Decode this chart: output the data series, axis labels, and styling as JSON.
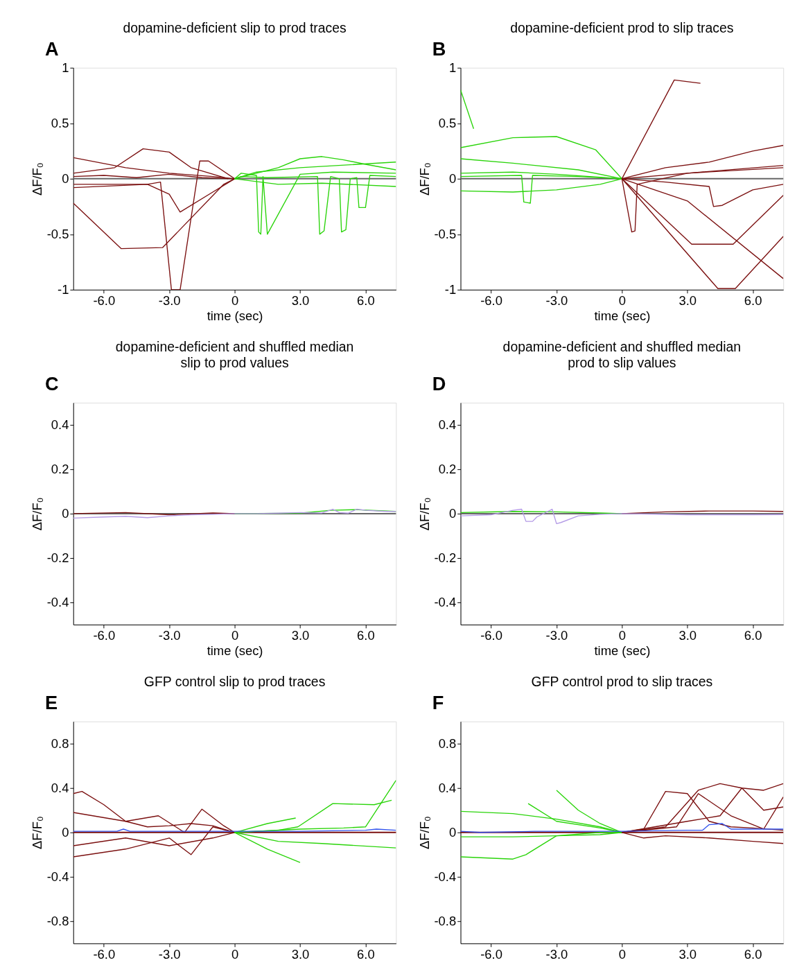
{
  "chart_data": [
    {
      "type": "line",
      "title": "dopamine-deficient slip to prod traces",
      "xlabel": "time (sec)",
      "ylabel": "ΔF/F₀",
      "annotations": [
        "A"
      ],
      "xlim": [
        -7.4,
        7.4
      ],
      "xticks": [
        {
          "value": -6,
          "label": "-6.0"
        },
        {
          "value": -3,
          "label": "-3.0"
        },
        0,
        {
          "value": 3,
          "label": "3.0"
        },
        {
          "value": 6,
          "label": "6.0"
        }
      ],
      "ylim": [
        -1,
        1
      ],
      "yticks": [
        -1,
        -0.5,
        0,
        0.5,
        1
      ],
      "grid": false,
      "legend": false,
      "ref_lines": [
        {
          "axis": "y",
          "value": 0,
          "color": "#666666"
        }
      ],
      "series": [
        {
          "color": "#7b1010",
          "x": [
            -7.4,
            -6,
            -4.5,
            -3,
            -1.5,
            0
          ],
          "values": [
            0.02,
            0.03,
            0.01,
            0.04,
            0.01,
            0
          ]
        },
        {
          "color": "#7b1010",
          "x": [
            -7.4,
            -5.5,
            -4.2,
            -3,
            -2,
            -0.3
          ],
          "values": [
            0.05,
            0.1,
            0.27,
            0.24,
            0.1,
            0
          ]
        },
        {
          "color": "#7b1010",
          "x": [
            -7.4,
            -5.2,
            -3.3,
            -0.5,
            0
          ],
          "values": [
            -0.22,
            -0.63,
            -0.62,
            -0.05,
            0
          ]
        },
        {
          "color": "#7b1010",
          "x": [
            -7.4,
            -4,
            -3.4,
            -2.9,
            -2.5,
            -1.6,
            -1.2,
            0
          ],
          "values": [
            -0.05,
            -0.05,
            -0.03,
            -1,
            -1,
            0.16,
            0.16,
            0
          ]
        },
        {
          "color": "#7b1010",
          "x": [
            -7.4,
            -4,
            -3,
            -2.5,
            -1,
            0
          ],
          "values": [
            -0.08,
            -0.05,
            -0.14,
            -0.3,
            -0.12,
            0
          ]
        },
        {
          "color": "#7b1010",
          "x": [
            -7.4,
            -5,
            -3,
            -1,
            0
          ],
          "values": [
            0.19,
            0.1,
            0.05,
            0.02,
            0
          ]
        },
        {
          "color": "#2ad40a",
          "x": [
            0,
            0.3,
            1.0,
            1.1,
            1.2,
            1.3,
            1.5,
            3,
            4.5,
            7.4
          ],
          "values": [
            0,
            0.05,
            0.03,
            -0.48,
            -0.5,
            0.02,
            -0.5,
            0.04,
            0.06,
            0.05
          ]
        },
        {
          "color": "#2ad40a",
          "x": [
            0,
            1,
            2,
            3,
            4,
            5,
            6,
            7.4
          ],
          "values": [
            0,
            0.05,
            0.1,
            0.18,
            0.2,
            0.17,
            0.13,
            0.08
          ]
        },
        {
          "color": "#2ad40a",
          "x": [
            0,
            0.3,
            1.5,
            3.8,
            3.9,
            4.1,
            4.4,
            4.8,
            4.9,
            5.1,
            5.3,
            5.6,
            5.7,
            6.0,
            6.2,
            7.4
          ],
          "values": [
            0,
            0.02,
            0.01,
            0.02,
            -0.5,
            -0.47,
            0.02,
            0.0,
            -0.48,
            -0.46,
            0.0,
            0.01,
            -0.26,
            -0.26,
            0.03,
            0.02
          ]
        },
        {
          "color": "#2ad40a",
          "x": [
            0,
            2,
            4,
            7.4
          ],
          "values": [
            0,
            -0.05,
            -0.04,
            -0.07
          ]
        },
        {
          "color": "#2ad40a",
          "x": [
            0,
            1,
            3,
            7.4
          ],
          "values": [
            0,
            0.06,
            0.1,
            0.15
          ]
        }
      ]
    },
    {
      "type": "line",
      "title": "dopamine-deficient prod to slip traces",
      "xlabel": "time (sec)",
      "ylabel": "ΔF/F₀",
      "annotations": [
        "B"
      ],
      "xlim": [
        -7.4,
        7.4
      ],
      "xticks": [
        {
          "value": -6,
          "label": "-6.0"
        },
        {
          "value": -3,
          "label": "-3.0"
        },
        0,
        {
          "value": 3,
          "label": "3.0"
        },
        {
          "value": 6,
          "label": "6.0"
        }
      ],
      "ylim": [
        -1,
        1
      ],
      "yticks": [
        -1,
        -0.5,
        0,
        0.5,
        1
      ],
      "grid": false,
      "legend": false,
      "ref_lines": [
        {
          "axis": "y",
          "value": 0,
          "color": "#666666"
        }
      ],
      "series": [
        {
          "color": "#2ad40a",
          "x": [
            -7.4,
            -6.8
          ],
          "values": [
            0.8,
            0.45
          ]
        },
        {
          "color": "#2ad40a",
          "x": [
            -7.4,
            -5,
            -3,
            -1.2,
            0
          ],
          "values": [
            0.28,
            0.37,
            0.38,
            0.26,
            0
          ]
        },
        {
          "color": "#2ad40a",
          "x": [
            -7.4,
            -5,
            -2,
            0
          ],
          "values": [
            0.18,
            0.14,
            0.08,
            0
          ]
        },
        {
          "color": "#2ad40a",
          "x": [
            -7.4,
            -5,
            -3,
            -1,
            0
          ],
          "values": [
            -0.11,
            -0.12,
            -0.1,
            -0.05,
            0
          ]
        },
        {
          "color": "#2ad40a",
          "x": [
            -7.4,
            -4.6,
            -4.5,
            -4.2,
            -4.1,
            -2,
            0
          ],
          "values": [
            0.02,
            0.03,
            -0.21,
            -0.22,
            0.03,
            0.02,
            0
          ]
        },
        {
          "color": "#2ad40a",
          "x": [
            -7.4,
            -5,
            -3,
            0
          ],
          "values": [
            0.05,
            0.06,
            0.04,
            0
          ]
        },
        {
          "color": "#7b1010",
          "x": [
            0,
            2.4,
            3.6
          ],
          "values": [
            0,
            0.89,
            0.86
          ]
        },
        {
          "color": "#7b1010",
          "x": [
            0,
            0.45,
            0.6,
            0.7,
            3,
            7.4
          ],
          "values": [
            0,
            -0.48,
            -0.47,
            -0.05,
            0.05,
            0.12
          ]
        },
        {
          "color": "#7b1010",
          "x": [
            0,
            3.2,
            5.1,
            7.4
          ],
          "values": [
            0,
            -0.59,
            -0.59,
            -0.15
          ]
        },
        {
          "color": "#7b1010",
          "x": [
            0,
            4.4,
            5.2,
            7.4
          ],
          "values": [
            0,
            -0.99,
            -0.99,
            -0.52
          ]
        },
        {
          "color": "#7b1010",
          "x": [
            0,
            3,
            7.4
          ],
          "values": [
            0,
            -0.2,
            -0.9
          ]
        },
        {
          "color": "#7b1010",
          "x": [
            0,
            2,
            4,
            6,
            7.4
          ],
          "values": [
            0,
            0.1,
            0.15,
            0.25,
            0.3
          ]
        },
        {
          "color": "#7b1010",
          "x": [
            0,
            2,
            4,
            4.2,
            4.6,
            6,
            7.4
          ],
          "values": [
            0,
            -0.03,
            -0.07,
            -0.25,
            -0.24,
            -0.1,
            -0.05
          ]
        },
        {
          "color": "#7b1010",
          "x": [
            0,
            3,
            7.4
          ],
          "values": [
            0,
            0.05,
            0.1
          ]
        }
      ]
    },
    {
      "type": "line",
      "title": "dopamine-deficient and shuffled median",
      "subtitle": "slip to prod  values",
      "xlabel": "time (sec)",
      "ylabel": "ΔF/F₀",
      "annotations": [
        "C"
      ],
      "xlim": [
        -7.4,
        7.4
      ],
      "xticks": [
        {
          "value": -6,
          "label": "-6.0"
        },
        {
          "value": -3,
          "label": "-3.0"
        },
        0,
        {
          "value": 3,
          "label": "3.0"
        },
        {
          "value": 6,
          "label": "6.0"
        }
      ],
      "ylim": [
        -0.5,
        0.5
      ],
      "yticks": [
        -0.4,
        -0.2,
        0,
        0.2,
        0.4
      ],
      "grid": false,
      "legend": false,
      "ref_lines": [
        {
          "axis": "y",
          "value": 0,
          "color": "#666666"
        }
      ],
      "series": [
        {
          "color": "#7b1010",
          "x": [
            -7.4,
            -5,
            -3,
            -1,
            0
          ],
          "values": [
            0.0,
            0.005,
            -0.005,
            0.003,
            0
          ]
        },
        {
          "color": "#2ad40a",
          "x": [
            0,
            3,
            4.4,
            5.5,
            7.4
          ],
          "values": [
            0,
            0.002,
            0.015,
            0.018,
            0.01
          ]
        },
        {
          "color": "#b49be6",
          "x": [
            -7.4,
            -6,
            -5,
            -4,
            -3,
            -2,
            -1,
            0,
            1,
            2,
            3,
            4,
            4.5,
            4.8,
            5.2,
            5.6,
            6,
            7,
            7.4
          ],
          "values": [
            -0.02,
            -0.015,
            -0.012,
            -0.018,
            -0.01,
            -0.005,
            -0.003,
            0,
            0,
            0.002,
            0.005,
            0.003,
            0.02,
            0.005,
            0.002,
            0.02,
            0.015,
            0.01,
            0.01
          ]
        }
      ]
    },
    {
      "type": "line",
      "title": "dopamine-deficient and shuffled median",
      "subtitle": "prod to slip  values",
      "xlabel": "time (sec)",
      "ylabel": "ΔF/F₀",
      "annotations": [
        "D"
      ],
      "xlim": [
        -7.4,
        7.4
      ],
      "xticks": [
        {
          "value": -6,
          "label": "-6.0"
        },
        {
          "value": -3,
          "label": "-3.0"
        },
        0,
        {
          "value": 3,
          "label": "3.0"
        },
        {
          "value": 6,
          "label": "6.0"
        }
      ],
      "ylim": [
        -0.5,
        0.5
      ],
      "yticks": [
        -0.4,
        -0.2,
        0,
        0.2,
        0.4
      ],
      "grid": false,
      "legend": false,
      "ref_lines": [
        {
          "axis": "y",
          "value": 0,
          "color": "#666666"
        }
      ],
      "series": [
        {
          "color": "#2ad40a",
          "x": [
            -7.4,
            -5,
            -3,
            -1,
            0
          ],
          "values": [
            0.005,
            0.01,
            0.008,
            0.003,
            0
          ]
        },
        {
          "color": "#7b1010",
          "x": [
            0,
            2,
            4,
            6,
            7.4
          ],
          "values": [
            0,
            0.008,
            0.012,
            0.012,
            0.01
          ]
        },
        {
          "color": "#b49be6",
          "x": [
            -7.4,
            -6,
            -5,
            -4.6,
            -4.4,
            -4.1,
            -3.9,
            -3.2,
            -3.0,
            -2.8,
            -2,
            -1,
            0,
            3,
            6,
            7.4
          ],
          "values": [
            -0.01,
            -0.005,
            0.015,
            0.02,
            -0.035,
            -0.035,
            -0.015,
            0.02,
            -0.045,
            -0.04,
            -0.01,
            -0.003,
            0,
            -0.005,
            -0.005,
            -0.004
          ]
        }
      ]
    },
    {
      "type": "line",
      "title": "GFP control slip to prod traces",
      "ylabel": "ΔF/F₀",
      "annotations": [
        "E"
      ],
      "xlim": [
        -7.4,
        7.4
      ],
      "xticks": [
        {
          "value": -6,
          "label": "-6.0"
        },
        {
          "value": -3,
          "label": "-3.0"
        },
        0,
        {
          "value": 3,
          "label": "3.0"
        },
        {
          "value": 6,
          "label": "6.0"
        }
      ],
      "ylim": [
        -1,
        1
      ],
      "yticks": [
        -0.8,
        -0.4,
        0,
        0.4,
        0.8
      ],
      "grid": false,
      "legend": false,
      "ref_lines": [
        {
          "axis": "y",
          "value": 0,
          "color": "#7b1010"
        }
      ],
      "series": [
        {
          "color": "#7b1010",
          "x": [
            -7.4,
            -7.0,
            -6.0,
            -5.0,
            -4.0,
            -3.0,
            -2.0,
            -1.0,
            0
          ],
          "values": [
            0.35,
            0.37,
            0.25,
            0.1,
            0.05,
            0.06,
            0.08,
            0.06,
            0
          ]
        },
        {
          "color": "#7b1010",
          "x": [
            -7.4,
            -5,
            -3,
            -2,
            -1,
            0
          ],
          "values": [
            -0.22,
            -0.15,
            -0.05,
            -0.2,
            0.05,
            0
          ]
        },
        {
          "color": "#7b1010",
          "x": [
            -7.4,
            -5,
            -3.5,
            -2.3,
            -1.5,
            -0.5,
            0
          ],
          "values": [
            0.18,
            0.1,
            0.15,
            0.0,
            0.21,
            0.06,
            0
          ]
        },
        {
          "color": "#7b1010",
          "x": [
            -7.4,
            -5,
            -3,
            -1,
            0
          ],
          "values": [
            -0.12,
            -0.05,
            -0.12,
            -0.05,
            0
          ]
        },
        {
          "color": "#2ad40a",
          "x": [
            0,
            1.5,
            3.0
          ],
          "values": [
            0,
            -0.15,
            -0.27
          ]
        },
        {
          "color": "#2ad40a",
          "x": [
            0,
            2,
            2.9,
            4.5,
            6.4,
            7.2
          ],
          "values": [
            0,
            0.02,
            0.05,
            0.26,
            0.25,
            0.29
          ]
        },
        {
          "color": "#2ad40a",
          "x": [
            0,
            3,
            5,
            6,
            7.4
          ],
          "values": [
            0,
            0.03,
            0.04,
            0.05,
            0.47
          ]
        },
        {
          "color": "#2ad40a",
          "x": [
            0,
            2,
            4,
            7.4
          ],
          "values": [
            0,
            -0.08,
            -0.1,
            -0.14
          ]
        },
        {
          "color": "#2ad40a",
          "x": [
            0,
            1.5,
            2.8
          ],
          "values": [
            0,
            0.08,
            0.13
          ]
        },
        {
          "color": "#3355ee",
          "x": [
            -7.4,
            -5.4,
            -5.1,
            -4.8,
            -3,
            0,
            3,
            6,
            6.5,
            7.4
          ],
          "values": [
            0.01,
            0.01,
            0.03,
            0.01,
            0.01,
            0.01,
            0.01,
            0.02,
            0.03,
            0.02
          ]
        }
      ]
    },
    {
      "type": "line",
      "title": "GFP control prod to slip traces",
      "ylabel": "ΔF/F₀",
      "annotations": [
        "F"
      ],
      "xlim": [
        -7.4,
        7.4
      ],
      "xticks": [
        {
          "value": -6,
          "label": "-6.0"
        },
        {
          "value": -3,
          "label": "-3.0"
        },
        0,
        {
          "value": 3,
          "label": "3.0"
        },
        {
          "value": 6,
          "label": "6.0"
        }
      ],
      "ylim": [
        -1,
        1
      ],
      "yticks": [
        -0.8,
        -0.4,
        0,
        0.4,
        0.8
      ],
      "grid": false,
      "legend": false,
      "ref_lines": [
        {
          "axis": "y",
          "value": 0,
          "color": "#7b1010"
        }
      ],
      "series": [
        {
          "color": "#2ad40a",
          "x": [
            -7.4,
            -5,
            -4.4,
            -3,
            -1,
            0
          ],
          "values": [
            -0.22,
            -0.24,
            -0.2,
            -0.03,
            0.0,
            0
          ]
        },
        {
          "color": "#2ad40a",
          "x": [
            -3.0,
            -2,
            -1,
            0
          ],
          "values": [
            0.38,
            0.2,
            0.08,
            0
          ]
        },
        {
          "color": "#2ad40a",
          "x": [
            -4.3,
            -3,
            -1,
            0
          ],
          "values": [
            0.26,
            0.1,
            0.04,
            0
          ]
        },
        {
          "color": "#2ad40a",
          "x": [
            -7.4,
            -5,
            -3,
            -1,
            0
          ],
          "values": [
            0.19,
            0.17,
            0.12,
            0.05,
            0
          ]
        },
        {
          "color": "#2ad40a",
          "x": [
            -7.4,
            -5,
            -3,
            -1,
            0
          ],
          "values": [
            -0.04,
            -0.04,
            -0.03,
            -0.02,
            0
          ]
        },
        {
          "color": "#7b1010",
          "x": [
            0,
            1,
            2,
            3,
            4,
            5,
            6,
            7.4
          ],
          "values": [
            0,
            0.03,
            0.37,
            0.35,
            0.1,
            0.05,
            0.04,
            0.02
          ]
        },
        {
          "color": "#7b1010",
          "x": [
            0,
            2,
            3.5,
            4.5,
            5.5,
            6.5,
            7.4
          ],
          "values": [
            0,
            0.05,
            0.38,
            0.44,
            0.4,
            0.38,
            0.44
          ]
        },
        {
          "color": "#7b1010",
          "x": [
            0,
            3,
            4.5,
            5.5,
            6.5,
            7.4
          ],
          "values": [
            0,
            0.1,
            0.15,
            0.4,
            0.2,
            0.23
          ]
        },
        {
          "color": "#7b1010",
          "x": [
            0,
            1,
            2,
            4,
            6,
            7.4
          ],
          "values": [
            0,
            -0.05,
            -0.03,
            -0.05,
            -0.08,
            -0.1
          ]
        },
        {
          "color": "#7b1010",
          "x": [
            0,
            2.5,
            3.5,
            5,
            6.5,
            7.4
          ],
          "values": [
            0,
            0.05,
            0.35,
            0.15,
            0.03,
            0.32
          ]
        },
        {
          "color": "#3355ee",
          "x": [
            -7.4,
            -6.5,
            -4,
            0,
            3,
            3.7,
            4,
            4.6,
            5,
            7.4
          ],
          "values": [
            0.01,
            0.0,
            0.01,
            0.01,
            0.02,
            0.02,
            0.07,
            0.08,
            0.03,
            0.03
          ]
        }
      ]
    }
  ]
}
